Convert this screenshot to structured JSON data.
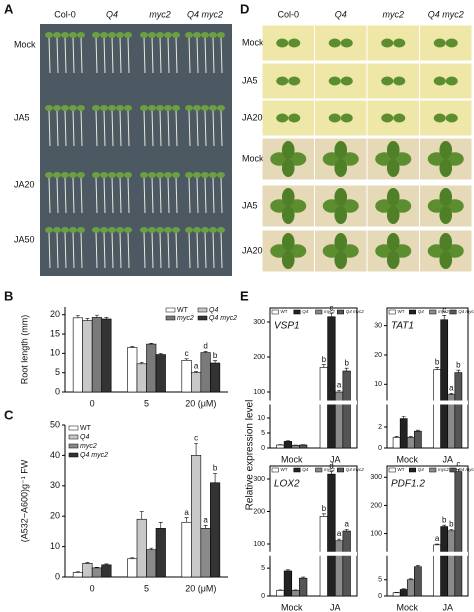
{
  "photo_a": {
    "letter": "A",
    "columns": [
      "Col-0",
      "Q4",
      "myc2",
      "Q4 myc2"
    ],
    "rows": [
      "Mock",
      "JA5",
      "JA20",
      "JA50"
    ]
  },
  "photo_d": {
    "letter": "D",
    "columns": [
      "Col-0",
      "Q4",
      "myc2",
      "Q4 myc2"
    ],
    "rows": [
      "Mock",
      "JA5",
      "JA20",
      "Mock",
      "JA5",
      "JA20"
    ]
  },
  "panel_b": {
    "letter": "B"
  },
  "panel_c": {
    "letter": "C"
  },
  "panel_e": {
    "letter": "E",
    "ylabel": "Relative expression level"
  },
  "chart_data": [
    {
      "type": "bar",
      "ylabel": "Root length (mm)",
      "categories": [
        "0",
        "5",
        "20 (μM)"
      ],
      "ylim": [
        0,
        22
      ],
      "yticks": [
        0,
        5,
        10,
        15,
        20
      ],
      "legend": "upper right",
      "series": [
        {
          "name": "WT",
          "color": "#ffffff",
          "values": [
            19.2,
            11.5,
            8.2
          ],
          "errors": [
            0.6,
            0.3,
            0.4
          ],
          "letters": [
            null,
            null,
            "c"
          ]
        },
        {
          "name": "Q4",
          "color": "#c8c8c8",
          "values": [
            18.5,
            7.3,
            5.0
          ],
          "errors": [
            0.5,
            0.4,
            0.3
          ],
          "letters": [
            null,
            null,
            "a"
          ]
        },
        {
          "name": "myc2",
          "color": "#7a7a7a",
          "values": [
            19.3,
            12.4,
            10.2
          ],
          "errors": [
            0.6,
            0.2,
            0.3
          ],
          "letters": [
            null,
            null,
            "d"
          ]
        },
        {
          "name": "Q4 myc2",
          "color": "#333333",
          "values": [
            18.9,
            9.7,
            7.5
          ],
          "errors": [
            0.4,
            0.3,
            0.6
          ],
          "letters": [
            null,
            null,
            "b"
          ]
        }
      ]
    },
    {
      "type": "bar",
      "ylabel": "(A532−A600)g⁻¹ FW",
      "categories": [
        "0",
        "5",
        "20 (μM)"
      ],
      "ylim": [
        0,
        50
      ],
      "yticks": [
        0,
        10,
        20,
        30,
        40,
        50
      ],
      "legend": "upper left",
      "series": [
        {
          "name": "WT",
          "color": "#ffffff",
          "values": [
            1.5,
            6,
            18
          ],
          "errors": [
            0.2,
            0.3,
            1.5
          ],
          "letters": [
            null,
            null,
            "a"
          ]
        },
        {
          "name": "Q4",
          "color": "#c8c8c8",
          "values": [
            4.5,
            19,
            40
          ],
          "errors": [
            0.3,
            2.5,
            4
          ],
          "letters": [
            null,
            null,
            "c"
          ]
        },
        {
          "name": "myc2",
          "color": "#8a8a8a",
          "values": [
            3,
            9,
            16
          ],
          "errors": [
            0.2,
            0.5,
            1
          ],
          "letters": [
            null,
            null,
            "a"
          ]
        },
        {
          "name": "Q4 myc2",
          "color": "#333333",
          "values": [
            4,
            16,
            31
          ],
          "errors": [
            0.3,
            2,
            3
          ],
          "letters": [
            null,
            null,
            "b"
          ]
        }
      ]
    },
    {
      "type": "bar",
      "title": "VSP1",
      "categories": [
        "Mock",
        "JA"
      ],
      "ylim": [
        0,
        340
      ],
      "axis_break": [
        14,
        80
      ],
      "yticks": [
        0,
        5,
        10,
        100,
        200,
        300
      ],
      "legend": "top",
      "series": [
        {
          "name": "WT",
          "color": "#ffffff",
          "values": [
            1,
            170
          ],
          "errors": [
            0.1,
            8
          ],
          "letters": [
            null,
            "b"
          ]
        },
        {
          "name": "Q4",
          "color": "#222222",
          "values": [
            2.2,
            315
          ],
          "errors": [
            0.2,
            10
          ],
          "letters": [
            null,
            "c"
          ]
        },
        {
          "name": "myc2",
          "color": "#8a8a8a",
          "values": [
            0.9,
            100
          ],
          "errors": [
            0.1,
            5
          ],
          "letters": [
            null,
            "a"
          ]
        },
        {
          "name": "Q4 myc2",
          "color": "#555555",
          "values": [
            1,
            160
          ],
          "errors": [
            0.1,
            8
          ],
          "letters": [
            null,
            "b"
          ]
        }
      ]
    },
    {
      "type": "bar",
      "title": "TAT1",
      "categories": [
        "Mock",
        "JA"
      ],
      "ylim": [
        0,
        36
      ],
      "axis_break": [
        4,
        5
      ],
      "yticks": [
        0,
        2,
        10,
        20,
        30
      ],
      "legend": "top",
      "series": [
        {
          "name": "WT",
          "color": "#ffffff",
          "values": [
            1,
            15
          ],
          "errors": [
            0.1,
            0.8
          ],
          "letters": [
            null,
            "b"
          ]
        },
        {
          "name": "Q4",
          "color": "#222222",
          "values": [
            2.8,
            32
          ],
          "errors": [
            0.2,
            1.5
          ],
          "letters": [
            null,
            "c"
          ]
        },
        {
          "name": "myc2",
          "color": "#8a8a8a",
          "values": [
            1,
            6.5
          ],
          "errors": [
            0.1,
            0.4
          ],
          "letters": [
            null,
            "a"
          ]
        },
        {
          "name": "Q4 myc2",
          "color": "#555555",
          "values": [
            1.6,
            14
          ],
          "errors": [
            0.1,
            0.8
          ],
          "letters": [
            null,
            "b"
          ]
        }
      ]
    },
    {
      "type": "bar",
      "title": "LOX2",
      "categories": [
        "Mock",
        "JA"
      ],
      "ylim": [
        0,
        340
      ],
      "axis_break": [
        7,
        80
      ],
      "yticks": [
        0,
        5,
        100,
        200,
        300
      ],
      "legend": "top",
      "series": [
        {
          "name": "WT",
          "color": "#ffffff",
          "values": [
            1,
            185
          ],
          "errors": [
            0.1,
            8
          ],
          "letters": [
            null,
            "b"
          ]
        },
        {
          "name": "Q4",
          "color": "#222222",
          "values": [
            4.5,
            315
          ],
          "errors": [
            0.2,
            8
          ],
          "letters": [
            null,
            "d"
          ]
        },
        {
          "name": "myc2",
          "color": "#8a8a8a",
          "values": [
            1,
            110
          ],
          "errors": [
            0.1,
            5
          ],
          "letters": [
            null,
            "a"
          ]
        },
        {
          "name": "Q4 myc2",
          "color": "#555555",
          "values": [
            3.2,
            140
          ],
          "errors": [
            0.2,
            5
          ],
          "letters": [
            null,
            "a"
          ]
        }
      ]
    },
    {
      "type": "bar",
      "title": "PDF1.2",
      "categories": [
        "Mock",
        "JA"
      ],
      "ylim": [
        0,
        340
      ],
      "axis_break": [
        12,
        40
      ],
      "yticks": [
        0,
        5,
        100,
        200,
        300
      ],
      "legend": "top",
      "series": [
        {
          "name": "WT",
          "color": "#ffffff",
          "values": [
            1,
            60
          ],
          "errors": [
            0.1,
            3
          ],
          "letters": [
            null,
            "a"
          ]
        },
        {
          "name": "Q4",
          "color": "#222222",
          "values": [
            2,
            125
          ],
          "errors": [
            0.2,
            5
          ],
          "letters": [
            null,
            "b"
          ]
        },
        {
          "name": "myc2",
          "color": "#8a8a8a",
          "values": [
            5,
            110
          ],
          "errors": [
            0.3,
            5
          ],
          "letters": [
            null,
            "b"
          ]
        },
        {
          "name": "Q4 myc2",
          "color": "#555555",
          "values": [
            9,
            320
          ],
          "errors": [
            0.4,
            8
          ],
          "letters": [
            null,
            "c"
          ]
        }
      ]
    }
  ]
}
